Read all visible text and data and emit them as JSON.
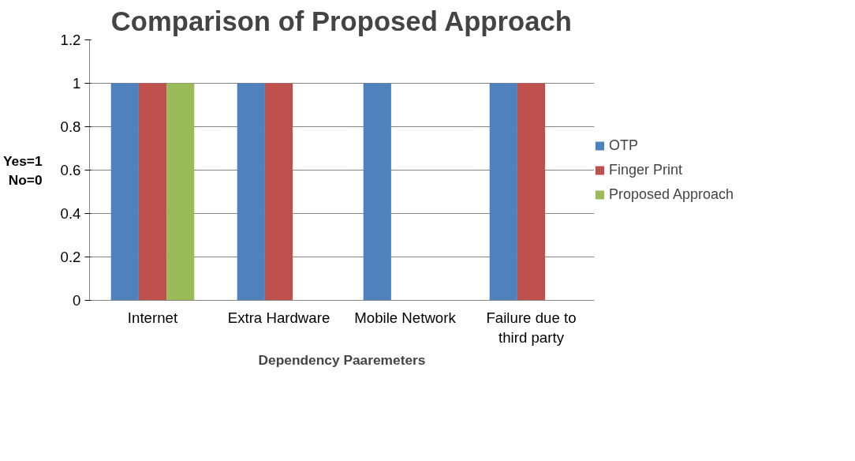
{
  "chart_data": {
    "type": "bar",
    "title": "Comparison of Proposed Approach",
    "xlabel": "Dependency Paaremeters",
    "ylabel": "Yes=1\nNo=0",
    "categories": [
      "Internet",
      "Extra Hardware",
      "Mobile Network",
      "Failure due to third party"
    ],
    "series": [
      {
        "name": "OTP",
        "color": "#4f81bd",
        "values": [
          1,
          1,
          1,
          1
        ]
      },
      {
        "name": "Finger Print",
        "color": "#c0504d",
        "values": [
          1,
          1,
          0,
          1
        ]
      },
      {
        "name": "Proposed Approach",
        "color": "#9bbb59",
        "values": [
          1,
          0,
          0,
          0
        ]
      }
    ],
    "ylim": [
      0,
      1.2
    ],
    "yticks": [
      0,
      0.2,
      0.4,
      0.6,
      0.8,
      1,
      1.2
    ],
    "grid": "y",
    "legend": "right"
  }
}
